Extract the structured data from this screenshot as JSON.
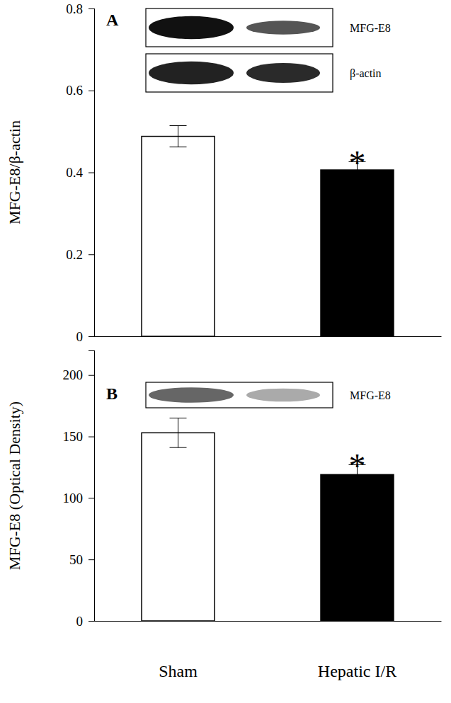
{
  "chart_data": [
    {
      "type": "bar",
      "title": "A",
      "y_label": "MFG-E8/β-actin",
      "categories": [
        "Sham",
        "Hepatic I/R"
      ],
      "values": [
        0.488,
        0.406
      ],
      "errors": [
        0.026,
        0.02
      ],
      "colors": [
        "#ffffff",
        "#000000"
      ],
      "ylim": [
        0,
        0.8
      ],
      "yticks": [
        0,
        0.2,
        0.4,
        0.6,
        0.8
      ],
      "tick_labels": "y",
      "blot_labels": [
        "MFG-E8",
        "β-actin"
      ],
      "annotations": [
        {
          "text": "*",
          "category": "Hepatic I/R"
        }
      ]
    },
    {
      "type": "bar",
      "title": "B",
      "y_label": "MFG-E8 (Optical Density)",
      "categories": [
        "Sham",
        "Hepatic I/R"
      ],
      "values": [
        153,
        119
      ],
      "errors": [
        12,
        8
      ],
      "colors": [
        "#ffffff",
        "#000000"
      ],
      "ylim": [
        0,
        220
      ],
      "yticks": [
        0,
        50,
        100,
        150,
        200
      ],
      "blot_labels": [
        "MFG-E8"
      ],
      "annotations": [
        {
          "text": "*",
          "category": "Hepatic I/R"
        }
      ]
    }
  ]
}
